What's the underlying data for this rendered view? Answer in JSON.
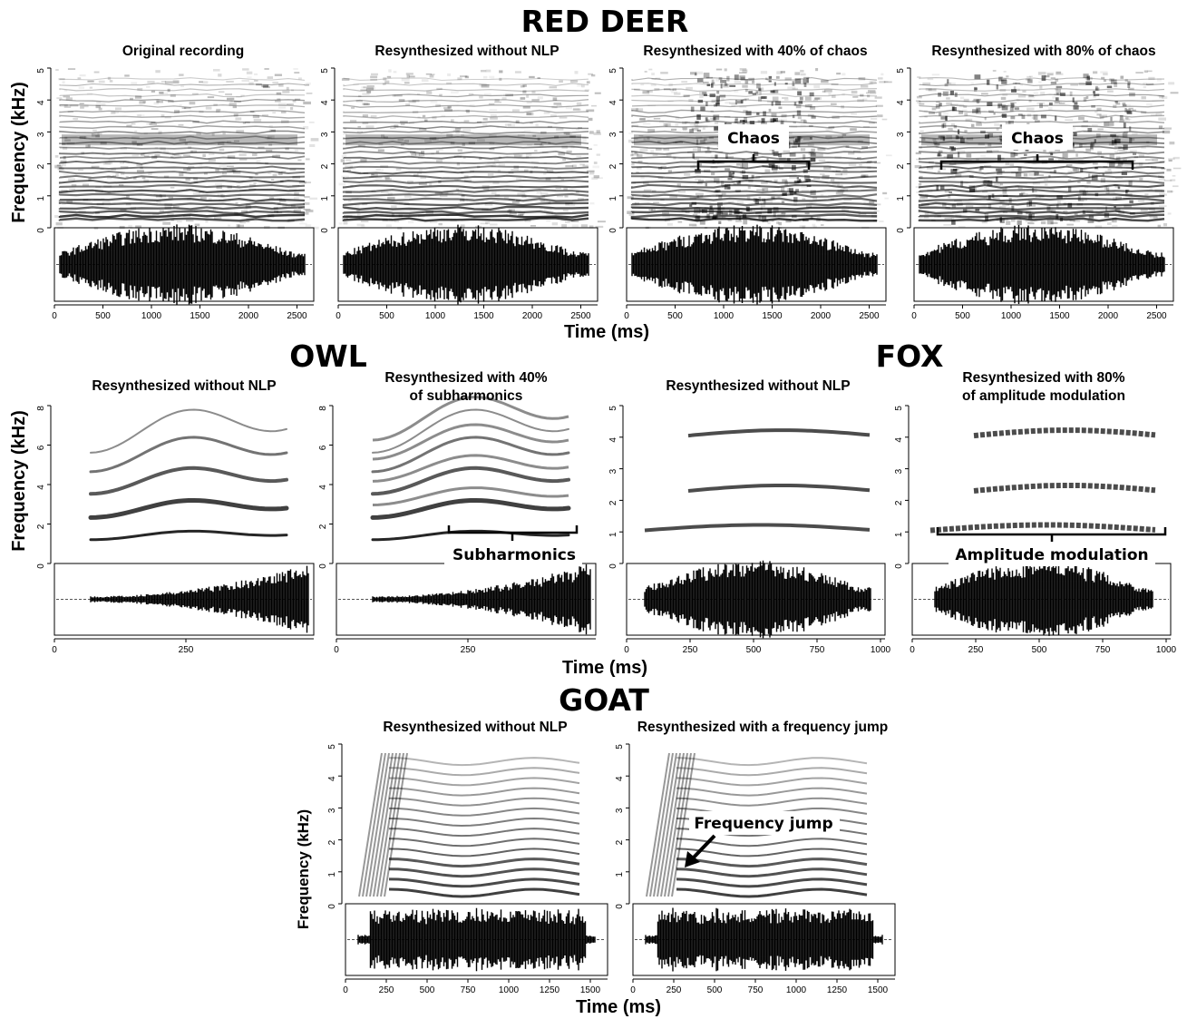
{
  "sections": {
    "red_deer": "RED DEER",
    "owl": "OWL",
    "fox": "FOX",
    "goat": "GOAT"
  },
  "axes": {
    "frequency": "Frequency (kHz)",
    "time": "Time (ms)"
  },
  "panels": {
    "deer": [
      {
        "title": "Original recording"
      },
      {
        "title": "Resynthesized without NLP"
      },
      {
        "title": "Resynthesized with 40% of chaos",
        "annotation": "Chaos"
      },
      {
        "title": "Resynthesized with 80% of chaos",
        "annotation": "Chaos"
      }
    ],
    "owl": [
      {
        "title": "Resynthesized without NLP"
      },
      {
        "title_line1": "Resynthesized with 40%",
        "title_line2": "of subharmonics",
        "annotation": "Subharmonics"
      }
    ],
    "fox": [
      {
        "title": "Resynthesized without NLP"
      },
      {
        "title_line1": "Resynthesized with 80%",
        "title_line2": "of amplitude modulation",
        "annotation": "Amplitude modulation"
      }
    ],
    "goat": [
      {
        "title": "Resynthesized without NLP"
      },
      {
        "title": "Resynthesized with a frequency jump",
        "annotation": "Frequency jump"
      }
    ]
  },
  "ticks": {
    "deer_freq": [
      "0",
      "1",
      "2",
      "3",
      "4",
      "5"
    ],
    "deer_time": [
      "0",
      "500",
      "1000",
      "1500",
      "2000",
      "2500"
    ],
    "owl_freq": [
      "0",
      "2",
      "4",
      "6",
      "8"
    ],
    "owl_time": [
      "0",
      "250"
    ],
    "fox_freq": [
      "0",
      "1",
      "2",
      "3",
      "4",
      "5"
    ],
    "fox_time": [
      "0",
      "250",
      "500",
      "750",
      "1000"
    ],
    "goat_freq": [
      "0",
      "1",
      "2",
      "3",
      "4",
      "5"
    ],
    "goat_time": [
      "0",
      "250",
      "500",
      "750",
      "1000",
      "1250",
      "1500"
    ]
  }
}
